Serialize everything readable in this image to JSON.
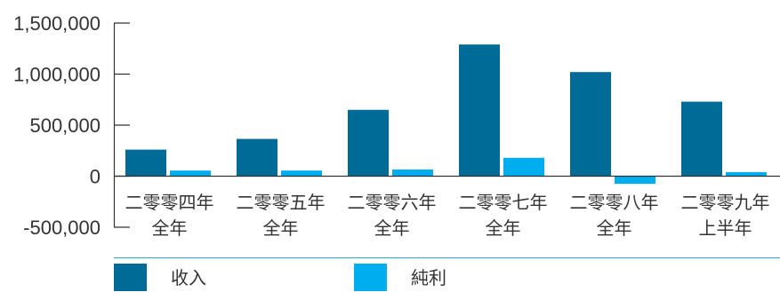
{
  "chart_data": {
    "type": "bar",
    "categories": [
      [
        "二零零四年",
        "全年"
      ],
      [
        "二零零五年",
        "全年"
      ],
      [
        "二零零六年",
        "全年"
      ],
      [
        "二零零七年",
        "全年"
      ],
      [
        "二零零八年",
        "全年"
      ],
      [
        "二零零九年",
        "上半年"
      ]
    ],
    "series": [
      {
        "name": "收入",
        "color": "#006b96",
        "values": [
          260000,
          365000,
          650000,
          1290000,
          1020000,
          730000
        ]
      },
      {
        "name": "純利",
        "color": "#00aeef",
        "values": [
          55000,
          55000,
          65000,
          180000,
          -75000,
          40000
        ]
      }
    ],
    "ylim": [
      -500000,
      1500000
    ],
    "yticks": [
      {
        "value": 1500000,
        "label": "1,500,000"
      },
      {
        "value": 1000000,
        "label": "1,000,000"
      },
      {
        "value": 500000,
        "label": "500,000"
      },
      {
        "value": 0,
        "label": "0"
      },
      {
        "value": -500000,
        "label": "-500,000"
      }
    ],
    "grid": false,
    "legend": "bottom-left",
    "axis_color": "#333333",
    "legend_divider_color": "#29abe2"
  }
}
